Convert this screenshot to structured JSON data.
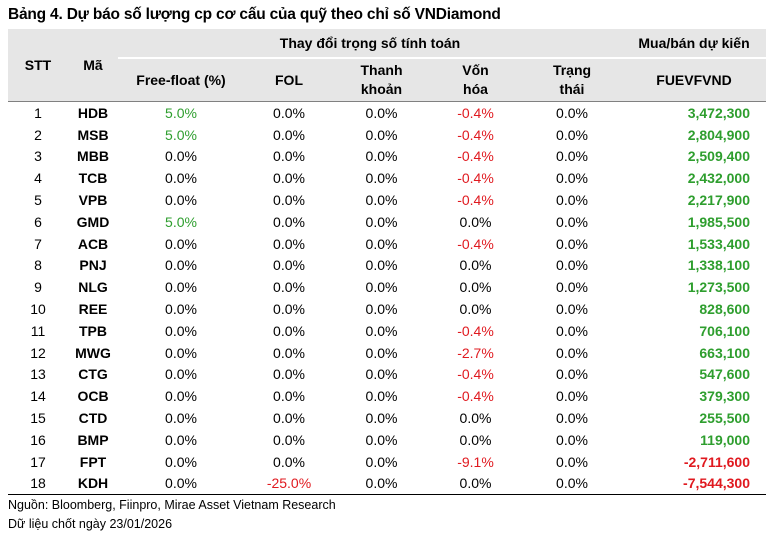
{
  "title": "Bảng 4. Dự báo số lượng cp cơ cấu của quỹ theo chỉ số VNDiamond",
  "headers": {
    "stt": "STT",
    "ma": "Mã",
    "group_change": "Thay đổi trọng số tính toán",
    "group_trade": "Mua/bán dự kiến",
    "free_float": "Free-float (%)",
    "fol": "FOL",
    "liquidity_1": "Thanh",
    "liquidity_2": "khoản",
    "cap_1": "Vốn",
    "cap_2": "hóa",
    "status_1": "Trạng",
    "status_2": "thái",
    "fund": "FUEVFVND"
  },
  "rows": [
    {
      "stt": "1",
      "ma": "HDB",
      "free_float": "5.0%",
      "fol": "0.0%",
      "liquidity": "0.0%",
      "cap": "-0.4%",
      "status": "0.0%",
      "fund": "3,472,300"
    },
    {
      "stt": "2",
      "ma": "MSB",
      "free_float": "5.0%",
      "fol": "0.0%",
      "liquidity": "0.0%",
      "cap": "-0.4%",
      "status": "0.0%",
      "fund": "2,804,900"
    },
    {
      "stt": "3",
      "ma": "MBB",
      "free_float": "0.0%",
      "fol": "0.0%",
      "liquidity": "0.0%",
      "cap": "-0.4%",
      "status": "0.0%",
      "fund": "2,509,400"
    },
    {
      "stt": "4",
      "ma": "TCB",
      "free_float": "0.0%",
      "fol": "0.0%",
      "liquidity": "0.0%",
      "cap": "-0.4%",
      "status": "0.0%",
      "fund": "2,432,000"
    },
    {
      "stt": "5",
      "ma": "VPB",
      "free_float": "0.0%",
      "fol": "0.0%",
      "liquidity": "0.0%",
      "cap": "-0.4%",
      "status": "0.0%",
      "fund": "2,217,900"
    },
    {
      "stt": "6",
      "ma": "GMD",
      "free_float": "5.0%",
      "fol": "0.0%",
      "liquidity": "0.0%",
      "cap": "0.0%",
      "status": "0.0%",
      "fund": "1,985,500"
    },
    {
      "stt": "7",
      "ma": "ACB",
      "free_float": "0.0%",
      "fol": "0.0%",
      "liquidity": "0.0%",
      "cap": "-0.4%",
      "status": "0.0%",
      "fund": "1,533,400"
    },
    {
      "stt": "8",
      "ma": "PNJ",
      "free_float": "0.0%",
      "fol": "0.0%",
      "liquidity": "0.0%",
      "cap": "0.0%",
      "status": "0.0%",
      "fund": "1,338,100"
    },
    {
      "stt": "9",
      "ma": "NLG",
      "free_float": "0.0%",
      "fol": "0.0%",
      "liquidity": "0.0%",
      "cap": "0.0%",
      "status": "0.0%",
      "fund": "1,273,500"
    },
    {
      "stt": "10",
      "ma": "REE",
      "free_float": "0.0%",
      "fol": "0.0%",
      "liquidity": "0.0%",
      "cap": "0.0%",
      "status": "0.0%",
      "fund": "828,600"
    },
    {
      "stt": "11",
      "ma": "TPB",
      "free_float": "0.0%",
      "fol": "0.0%",
      "liquidity": "0.0%",
      "cap": "-0.4%",
      "status": "0.0%",
      "fund": "706,100"
    },
    {
      "stt": "12",
      "ma": "MWG",
      "free_float": "0.0%",
      "fol": "0.0%",
      "liquidity": "0.0%",
      "cap": "-2.7%",
      "status": "0.0%",
      "fund": "663,100"
    },
    {
      "stt": "13",
      "ma": "CTG",
      "free_float": "0.0%",
      "fol": "0.0%",
      "liquidity": "0.0%",
      "cap": "-0.4%",
      "status": "0.0%",
      "fund": "547,600"
    },
    {
      "stt": "14",
      "ma": "OCB",
      "free_float": "0.0%",
      "fol": "0.0%",
      "liquidity": "0.0%",
      "cap": "-0.4%",
      "status": "0.0%",
      "fund": "379,300"
    },
    {
      "stt": "15",
      "ma": "CTD",
      "free_float": "0.0%",
      "fol": "0.0%",
      "liquidity": "0.0%",
      "cap": "0.0%",
      "status": "0.0%",
      "fund": "255,500"
    },
    {
      "stt": "16",
      "ma": "BMP",
      "free_float": "0.0%",
      "fol": "0.0%",
      "liquidity": "0.0%",
      "cap": "0.0%",
      "status": "0.0%",
      "fund": "119,000"
    },
    {
      "stt": "17",
      "ma": "FPT",
      "free_float": "0.0%",
      "fol": "0.0%",
      "liquidity": "0.0%",
      "cap": "-9.1%",
      "status": "0.0%",
      "fund": "-2,711,600"
    },
    {
      "stt": "18",
      "ma": "KDH",
      "free_float": "0.0%",
      "fol": "-25.0%",
      "liquidity": "0.0%",
      "cap": "0.0%",
      "status": "0.0%",
      "fund": "-7,544,300"
    }
  ],
  "source": "Nguồn: Bloomberg, Fiinpro, Mirae Asset Vietnam Research",
  "data_date": "Dữ liệu chốt ngày 23/01/2026",
  "colors": {
    "positive": "#2e9e2e",
    "negative": "#e0191f",
    "header_bg": "#e6e6e6"
  }
}
